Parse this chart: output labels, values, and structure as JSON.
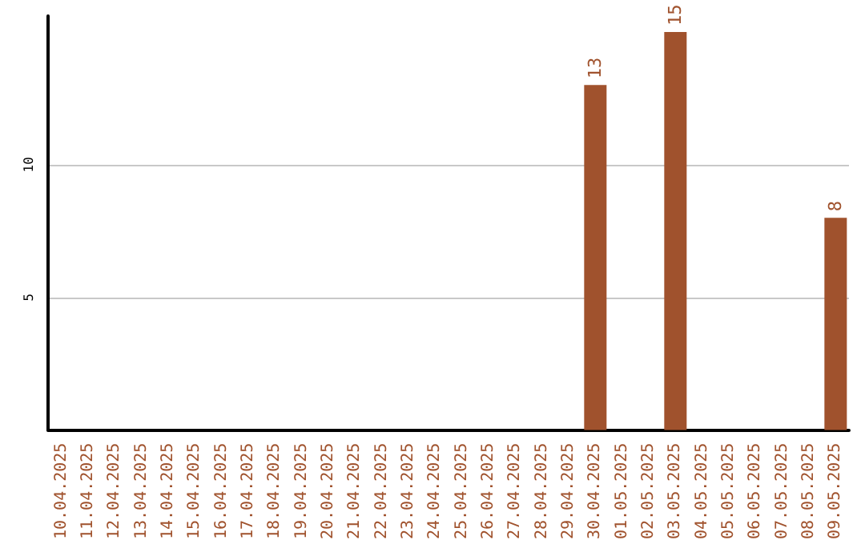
{
  "chart_data": {
    "type": "bar",
    "categories": [
      "10.04.2025",
      "11.04.2025",
      "12.04.2025",
      "13.04.2025",
      "14.04.2025",
      "15.04.2025",
      "16.04.2025",
      "17.04.2025",
      "18.04.2025",
      "19.04.2025",
      "20.04.2025",
      "21.04.2025",
      "22.04.2025",
      "23.04.2025",
      "24.04.2025",
      "25.04.2025",
      "26.04.2025",
      "27.04.2025",
      "28.04.2025",
      "29.04.2025",
      "30.04.2025",
      "01.05.2025",
      "02.05.2025",
      "03.05.2025",
      "04.05.2025",
      "05.05.2025",
      "06.05.2025",
      "07.05.2025",
      "08.05.2025",
      "09.05.2025"
    ],
    "values": [
      null,
      null,
      null,
      null,
      null,
      null,
      null,
      null,
      null,
      null,
      null,
      null,
      null,
      null,
      null,
      null,
      null,
      null,
      null,
      null,
      13,
      null,
      null,
      15,
      null,
      null,
      null,
      null,
      null,
      8
    ],
    "color": "#a0522d",
    "ylim": [
      0,
      15.6
    ],
    "yticks": [
      5,
      10
    ],
    "grid": "y",
    "data_labels": true
  }
}
